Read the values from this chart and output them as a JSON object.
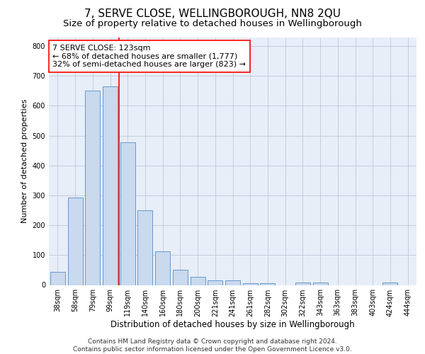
{
  "title": "7, SERVE CLOSE, WELLINGBOROUGH, NN8 2QU",
  "subtitle": "Size of property relative to detached houses in Wellingborough",
  "xlabel": "Distribution of detached houses by size in Wellingborough",
  "ylabel": "Number of detached properties",
  "bar_color": "#c9d9ee",
  "bar_edge_color": "#6699cc",
  "grid_color": "#c0c8d8",
  "background_color": "#e8eef8",
  "categories": [
    "38sqm",
    "58sqm",
    "79sqm",
    "99sqm",
    "119sqm",
    "140sqm",
    "160sqm",
    "180sqm",
    "200sqm",
    "221sqm",
    "241sqm",
    "261sqm",
    "282sqm",
    "302sqm",
    "322sqm",
    "343sqm",
    "363sqm",
    "383sqm",
    "403sqm",
    "424sqm",
    "444sqm"
  ],
  "values": [
    45,
    293,
    651,
    665,
    478,
    250,
    113,
    50,
    27,
    15,
    15,
    7,
    7,
    0,
    8,
    8,
    0,
    0,
    0,
    8,
    0
  ],
  "ylim": [
    0,
    830
  ],
  "yticks": [
    0,
    100,
    200,
    300,
    400,
    500,
    600,
    700,
    800
  ],
  "annotation_text_line1": "7 SERVE CLOSE: 123sqm",
  "annotation_text_line2": "← 68% of detached houses are smaller (1,777)",
  "annotation_text_line3": "32% of semi-detached houses are larger (823) →",
  "annotation_box_color": "white",
  "annotation_border_color": "red",
  "vline_color": "red",
  "vline_x_index": 4,
  "footer_line1": "Contains HM Land Registry data © Crown copyright and database right 2024.",
  "footer_line2": "Contains public sector information licensed under the Open Government Licence v3.0.",
  "title_fontsize": 11,
  "subtitle_fontsize": 9.5,
  "annotation_fontsize": 8,
  "footer_fontsize": 6.5,
  "xlabel_fontsize": 8.5,
  "ylabel_fontsize": 8,
  "tick_fontsize": 7
}
